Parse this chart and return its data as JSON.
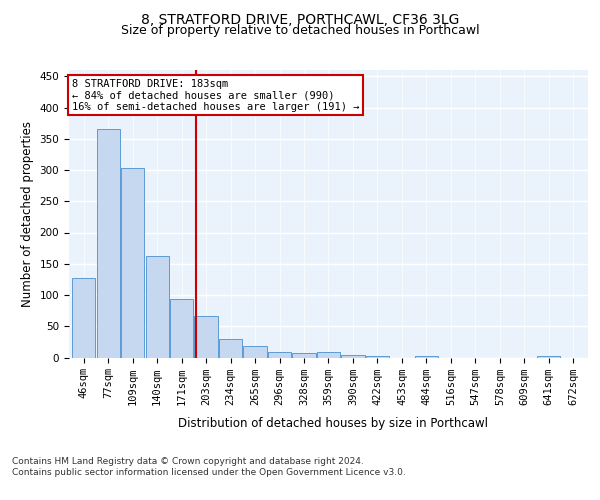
{
  "title": "8, STRATFORD DRIVE, PORTHCAWL, CF36 3LG",
  "subtitle": "Size of property relative to detached houses in Porthcawl",
  "xlabel": "Distribution of detached houses by size in Porthcawl",
  "ylabel": "Number of detached properties",
  "bar_labels": [
    "46sqm",
    "77sqm",
    "109sqm",
    "140sqm",
    "171sqm",
    "203sqm",
    "234sqm",
    "265sqm",
    "296sqm",
    "328sqm",
    "359sqm",
    "390sqm",
    "422sqm",
    "453sqm",
    "484sqm",
    "516sqm",
    "547sqm",
    "578sqm",
    "609sqm",
    "641sqm",
    "672sqm"
  ],
  "bar_values": [
    127,
    365,
    304,
    163,
    93,
    67,
    30,
    18,
    9,
    7,
    9,
    4,
    2,
    0,
    3,
    0,
    0,
    0,
    0,
    3,
    0
  ],
  "bar_color": "#c5d8f0",
  "bar_edge_color": "#5b9bd5",
  "ylim": [
    0,
    460
  ],
  "yticks": [
    0,
    50,
    100,
    150,
    200,
    250,
    300,
    350,
    400,
    450
  ],
  "vline_x": 4.58,
  "vline_color": "#cc0000",
  "annotation_text": "8 STRATFORD DRIVE: 183sqm\n← 84% of detached houses are smaller (990)\n16% of semi-detached houses are larger (191) →",
  "annotation_box_color": "#ffffff",
  "annotation_edge_color": "#cc0000",
  "footer": "Contains HM Land Registry data © Crown copyright and database right 2024.\nContains public sector information licensed under the Open Government Licence v3.0.",
  "background_color": "#eaf3fb",
  "grid_color": "#ffffff",
  "title_fontsize": 10,
  "subtitle_fontsize": 9,
  "axis_label_fontsize": 8.5,
  "tick_fontsize": 7.5,
  "footer_fontsize": 6.5
}
